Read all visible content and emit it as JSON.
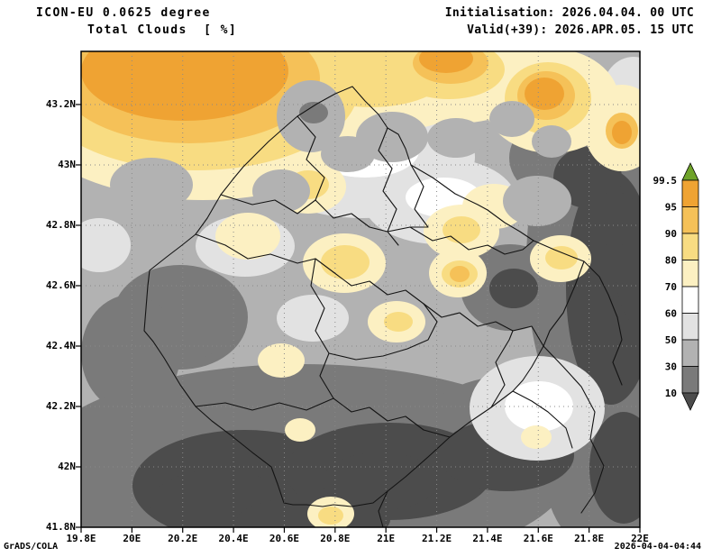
{
  "header": {
    "model_line": "ICON-EU 0.0625 degree",
    "variable_line": "Total Clouds  [ %]",
    "init_line": "Initialisation: 2026.04.04. 00 UTC",
    "valid_line": "Valid(+39): 2026.APR.05. 15 UTC"
  },
  "footer": {
    "credit": "GrADS/COLA",
    "timestamp": "2026-04-04-04:44"
  },
  "chart_data": {
    "type": "heatmap",
    "title": "Total Clouds [ %]",
    "model": "ICON-EU 0.0625 degree",
    "init_time": "2026.04.04. 00 UTC",
    "valid_time": "2026.APR.05. 15 UTC",
    "lead_hours": 39,
    "unit": "%",
    "region": "Kosovo and surrounding area",
    "x_axis": {
      "ticks": [
        "19.8E",
        "20E",
        "20.2E",
        "20.4E",
        "20.6E",
        "20.8E",
        "21E",
        "21.2E",
        "21.4E",
        "21.6E",
        "21.8E",
        "22E"
      ],
      "range": [
        19.8,
        22.0
      ]
    },
    "y_axis": {
      "ticks": [
        "43.2N",
        "43N",
        "42.8N",
        "42.6N",
        "42.4N",
        "42.2N",
        "42N",
        "41.8N"
      ],
      "range": [
        41.8,
        43.38
      ]
    },
    "colorbar": {
      "tick_labels": [
        "99.5",
        "95",
        "90",
        "80",
        "70",
        "60",
        "50",
        "30",
        "10"
      ],
      "colors_top_to_bottom": [
        "#6fa32a",
        "#efa333",
        "#f5c158",
        "#f8dc82",
        "#fcf0c2",
        "#ffffff",
        "#e2e2e2",
        "#b2b2b2",
        "#7a7a7a",
        "#4c4c4c"
      ],
      "position": "right"
    },
    "grid": "dotted",
    "description": "Filled-contour total cloud cover (%): orange/yellow cells (80-99.5%) over the northwest corner and scattered through the north-central area, white/light grays (50-70%) in the upper middle, mid grays (30-50%) broadly, and dark grays (<10-30%) across the south and along the eastern side, with Kosovo municipality boundaries drawn in black."
  }
}
